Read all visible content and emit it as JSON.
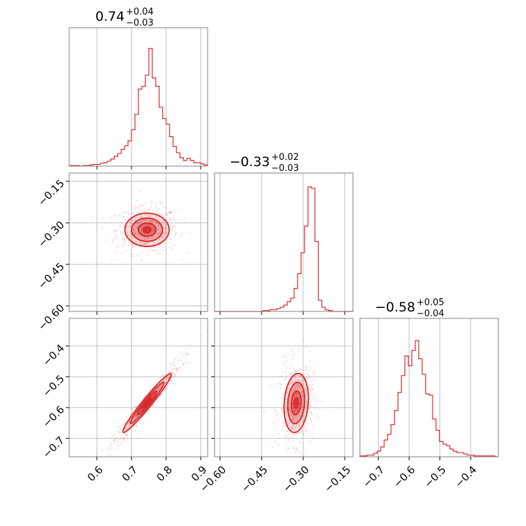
{
  "chart_data": {
    "type": "corner",
    "grid": true,
    "color": "#d62728",
    "parameters": [
      {
        "title": {
          "main": "0.74",
          "sup": "+0.04",
          "sub": "−0.03"
        },
        "median": 0.74,
        "err_plus": 0.04,
        "err_minus": 0.03,
        "range": [
          0.52,
          0.92
        ],
        "ticks": [
          0.6,
          0.7,
          0.8,
          0.9
        ],
        "tick_labels": [
          "0.6",
          "0.7",
          "0.8",
          "0.9"
        ],
        "hist": [
          0.004,
          0.004,
          0.004,
          0.0,
          0.004,
          0.004,
          0.008,
          0.012,
          0.012,
          0.02,
          0.024,
          0.035,
          0.05,
          0.07,
          0.09,
          0.12,
          0.145,
          0.18,
          0.26,
          0.37,
          0.55,
          0.57,
          0.65,
          0.84,
          0.63,
          0.57,
          0.42,
          0.34,
          0.3,
          0.21,
          0.14,
          0.095,
          0.06,
          0.04,
          0.055,
          0.04,
          0.024,
          0.024,
          0.016,
          0.008
        ]
      },
      {
        "title": {
          "main": "−0.33",
          "sup": "+0.02",
          "sub": "−0.03"
        },
        "median": -0.33,
        "err_plus": 0.02,
        "err_minus": 0.03,
        "range": [
          -0.62,
          -0.12
        ],
        "ticks": [
          -0.6,
          -0.45,
          -0.3,
          -0.15
        ],
        "tick_labels": [
          "−0.60",
          "−0.45",
          "−0.30",
          "−0.15"
        ],
        "hist": [
          0,
          0,
          0,
          0,
          0,
          0,
          0,
          0,
          0,
          0,
          0,
          0,
          0,
          0,
          0.006,
          0.006,
          0.012,
          0.012,
          0.02,
          0.03,
          0.045,
          0.07,
          0.095,
          0.165,
          0.27,
          0.42,
          0.61,
          0.89,
          0.88,
          0.5,
          0.08,
          0.03,
          0.012,
          0.006,
          0,
          0,
          0,
          0,
          0,
          0
        ]
      },
      {
        "title": {
          "main": "−0.58",
          "sup": "+0.05",
          "sub": "−0.04"
        },
        "median": -0.58,
        "err_plus": 0.05,
        "err_minus": 0.04,
        "range": [
          -0.76,
          -0.31
        ],
        "ticks": [
          -0.7,
          -0.6,
          -0.5,
          -0.4
        ],
        "tick_labels": [
          "−0.7",
          "−0.6",
          "−0.5",
          "−0.4"
        ],
        "hist": [
          0.006,
          0.006,
          0.012,
          0.012,
          0.025,
          0.04,
          0.07,
          0.12,
          0.16,
          0.23,
          0.33,
          0.46,
          0.58,
          0.72,
          0.65,
          0.76,
          0.83,
          0.7,
          0.59,
          0.45,
          0.44,
          0.27,
          0.19,
          0.11,
          0.09,
          0.08,
          0.055,
          0.04,
          0.03,
          0.03,
          0.02,
          0.012,
          0.012,
          0.006,
          0.006,
          0.006,
          0.006,
          0.006,
          0.006,
          0.0
        ]
      }
    ],
    "pairs": [
      {
        "x_param": 0,
        "y_param": 1,
        "center": [
          0.745,
          -0.325
        ],
        "sx": 0.032,
        "sy": 0.03,
        "rho": 0.0,
        "n_points": 500
      },
      {
        "x_param": 0,
        "y_param": 2,
        "center": [
          0.745,
          -0.585
        ],
        "sx": 0.035,
        "sy": 0.048,
        "rho": 0.97,
        "n_points": 500
      },
      {
        "x_param": 1,
        "y_param": 2,
        "center": [
          -0.325,
          -0.585
        ],
        "sx": 0.022,
        "sy": 0.048,
        "rho": 0.15,
        "n_points": 500
      }
    ]
  }
}
